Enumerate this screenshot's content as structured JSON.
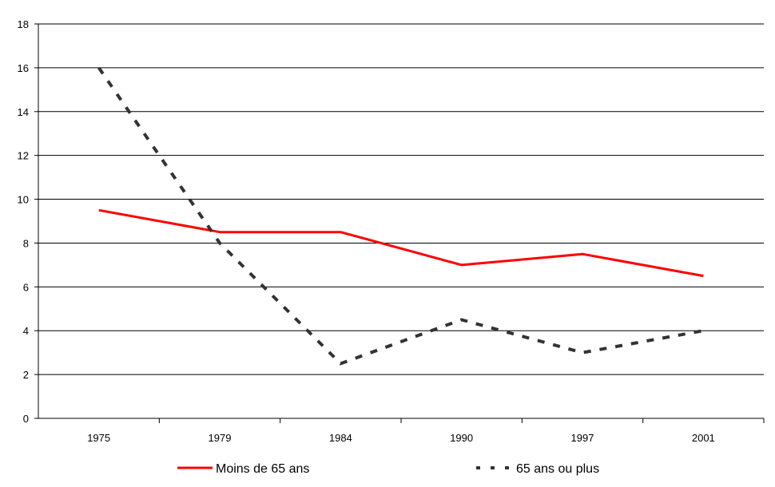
{
  "chart_data": {
    "type": "line",
    "categories": [
      "1975",
      "1979",
      "1984",
      "1990",
      "1997",
      "2001"
    ],
    "ylim": [
      0,
      18
    ],
    "yticks": [
      0,
      2,
      4,
      6,
      8,
      10,
      12,
      14,
      16,
      18
    ],
    "grid": "horizontal",
    "legend_position": "bottom",
    "series": [
      {
        "name": "Moins de 65 ans",
        "values": [
          9.5,
          8.5,
          8.5,
          7.0,
          7.5,
          6.5
        ],
        "color": "#ff0000",
        "style": "solid"
      },
      {
        "name": "65 ans ou plus",
        "values": [
          16.0,
          8.0,
          2.5,
          4.5,
          3.0,
          4.0
        ],
        "color": "#333333",
        "style": "dashed"
      }
    ]
  }
}
